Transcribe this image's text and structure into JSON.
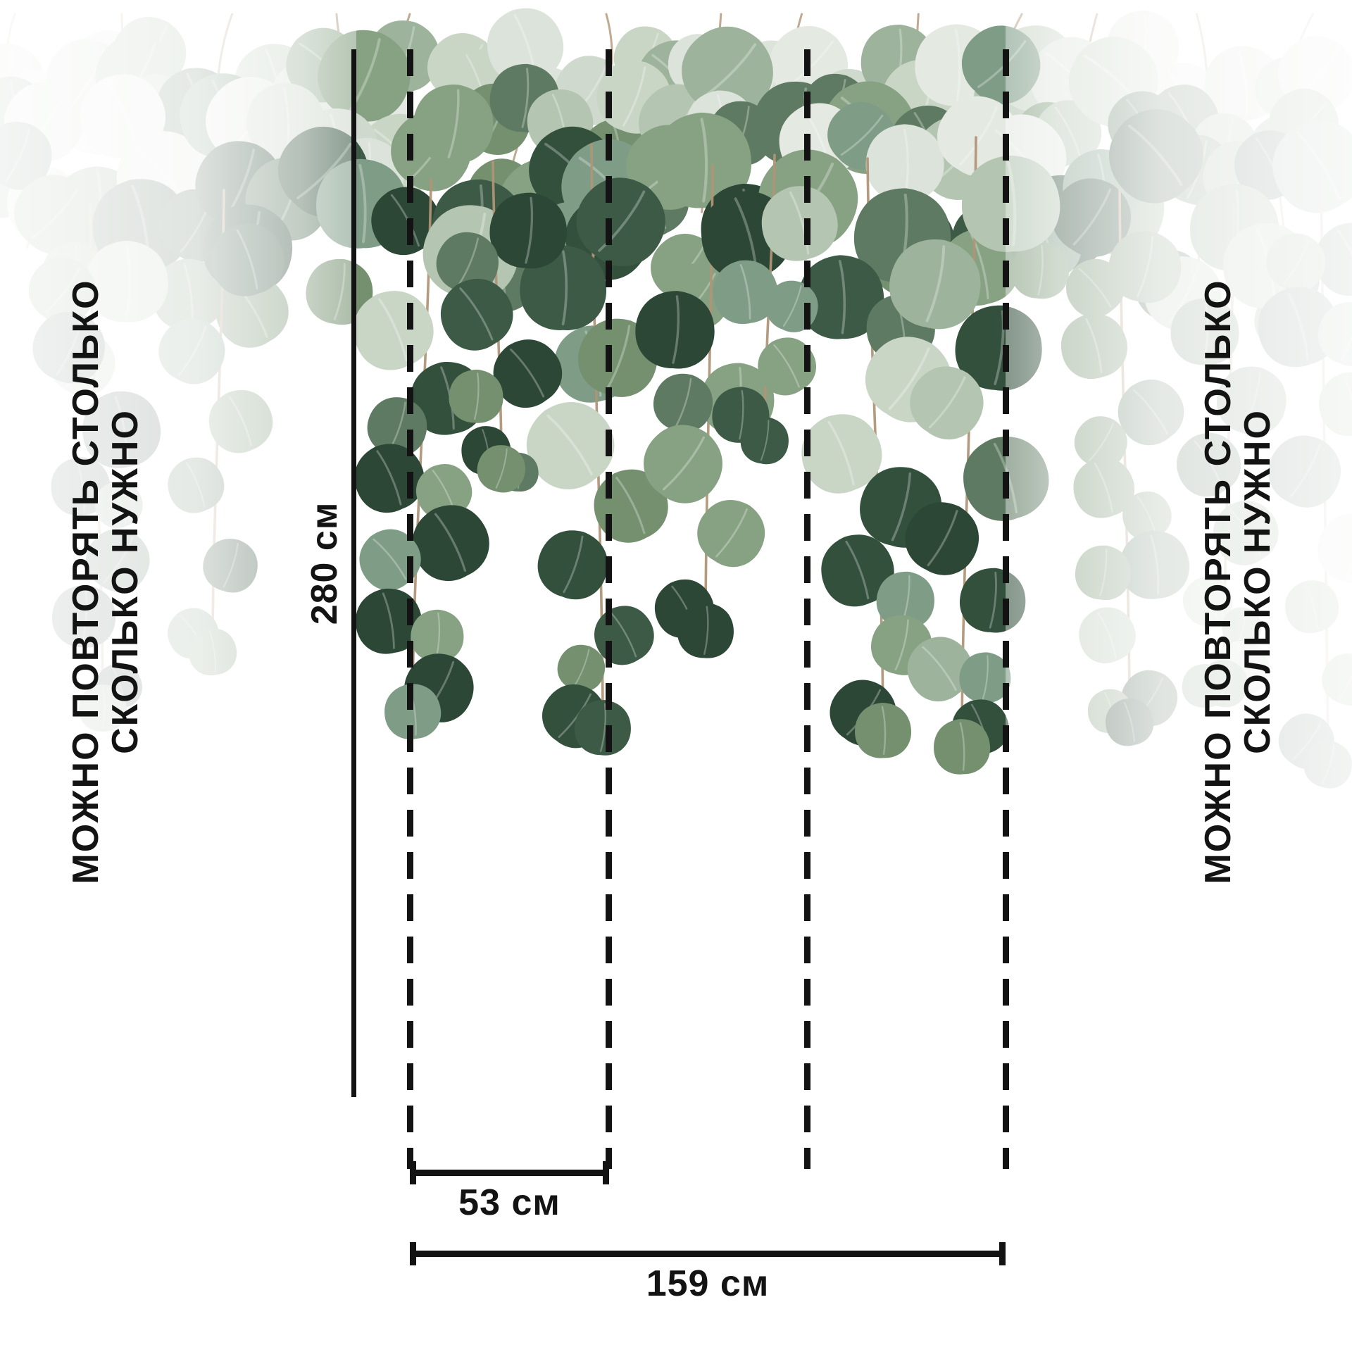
{
  "annotations": {
    "repeat_note_line1": "МОЖНО ПОВТОРЯТЬ СТОЛЬКО",
    "repeat_note_line2": "СКОЛЬКО НУЖНО",
    "height_label": "280 см",
    "panel_width_label": "53 см",
    "total_width_label": "159 см"
  },
  "artwork": {
    "type": "hanging-eucalyptus-leaf-mural",
    "palette": {
      "leaf_dark": "#2c4736",
      "leaf_dark2": "#3c5a45",
      "leaf_mid": "#74906f",
      "leaf_mid2": "#87a183",
      "leaf_pale": "#b4c5b2",
      "leaf_pale2": "#c9d6c6",
      "leaf_silver": "#dce3da",
      "stem": "#b09577",
      "background": "#ffffff",
      "line_color": "#131313"
    }
  }
}
